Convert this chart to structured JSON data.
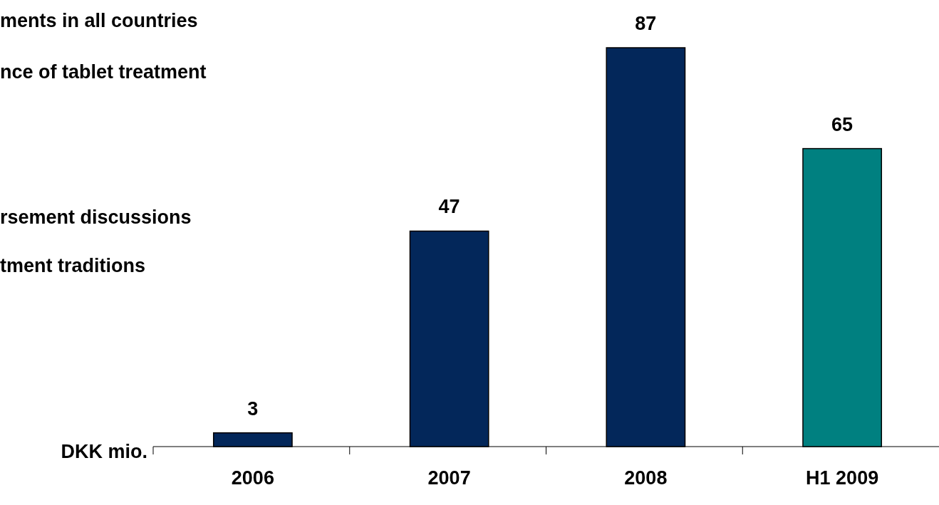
{
  "chart_data": {
    "type": "bar",
    "ylabel": "DKK mio.",
    "categories": [
      "2006",
      "2007",
      "2008",
      "H1 2009"
    ],
    "values": [
      3,
      47,
      87,
      65
    ],
    "colors": [
      "#03275a",
      "#03275a",
      "#03275a",
      "#008080"
    ],
    "data_labels": true,
    "annotations": [
      "ments in all countries",
      "nce of tablet treatment",
      "rsement discussions",
      "tment traditions"
    ]
  }
}
